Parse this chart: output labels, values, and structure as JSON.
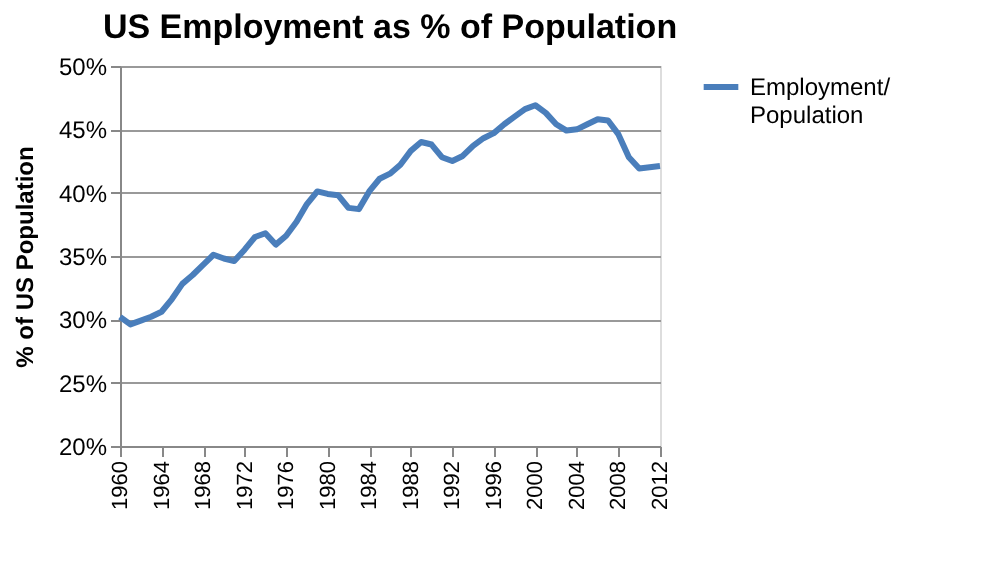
{
  "chart_data": {
    "type": "line",
    "title": "US Employment  as % of Population",
    "ylabel": "% of US Population",
    "x": [
      1960,
      1961,
      1962,
      1963,
      1964,
      1965,
      1966,
      1967,
      1968,
      1969,
      1970,
      1971,
      1972,
      1973,
      1974,
      1975,
      1976,
      1977,
      1978,
      1979,
      1980,
      1981,
      1982,
      1983,
      1984,
      1985,
      1986,
      1987,
      1988,
      1989,
      1990,
      1991,
      1992,
      1993,
      1994,
      1995,
      1996,
      1997,
      1998,
      1999,
      2000,
      2001,
      2002,
      2003,
      2004,
      2005,
      2006,
      2007,
      2008,
      2009,
      2010,
      2011,
      2012
    ],
    "series": [
      {
        "name": "Employment/ Population",
        "color": "#4a7ebb",
        "values": [
          30.2,
          29.6,
          29.9,
          30.2,
          30.6,
          31.6,
          32.8,
          33.5,
          34.3,
          35.1,
          34.8,
          34.6,
          35.5,
          36.5,
          36.8,
          35.9,
          36.6,
          37.7,
          39.1,
          40.1,
          39.9,
          39.8,
          38.8,
          38.7,
          40.1,
          41.1,
          41.5,
          42.2,
          43.3,
          44.0,
          43.8,
          42.8,
          42.5,
          42.9,
          43.7,
          44.3,
          44.7,
          45.4,
          46.0,
          46.6,
          46.9,
          46.3,
          45.4,
          44.9,
          45.0,
          45.4,
          45.8,
          45.7,
          44.6,
          42.8,
          41.9,
          42.0,
          42.1
        ]
      }
    ],
    "xlim": [
      1960,
      2012
    ],
    "xticks": [
      1960,
      1964,
      1968,
      1972,
      1976,
      1980,
      1984,
      1988,
      1992,
      1996,
      2000,
      2004,
      2008,
      2012
    ],
    "ylim": [
      20,
      50
    ],
    "yticks": [
      {
        "value": 20,
        "label": "20%"
      },
      {
        "value": 25,
        "label": "25%"
      },
      {
        "value": 30,
        "label": "30%"
      },
      {
        "value": 35,
        "label": "35%"
      },
      {
        "value": 40,
        "label": "40%"
      },
      {
        "value": 45,
        "label": "45%"
      },
      {
        "value": 50,
        "label": "50%"
      }
    ],
    "grid": "y",
    "legend": "right",
    "marker": "none",
    "line_style": "solid"
  }
}
